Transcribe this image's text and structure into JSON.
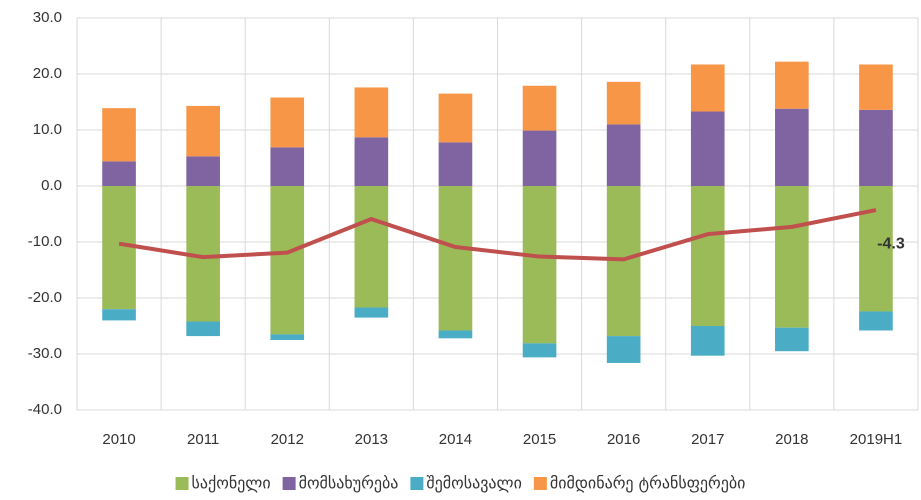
{
  "chart_data": {
    "type": "bar",
    "categories": [
      "2010",
      "2011",
      "2012",
      "2013",
      "2014",
      "2015",
      "2016",
      "2017",
      "2018",
      "2019H1"
    ],
    "series": [
      {
        "name": "საქონელი",
        "color": "#9bbb59",
        "values": [
          -22.0,
          -24.2,
          -26.5,
          -21.7,
          -25.8,
          -28.1,
          -26.8,
          -25.0,
          -25.3,
          -22.4
        ]
      },
      {
        "name": "მომსახურება",
        "color": "#8064a2",
        "values": [
          4.4,
          5.3,
          6.9,
          8.7,
          7.8,
          9.9,
          11.0,
          13.3,
          13.8,
          13.6
        ]
      },
      {
        "name": "შემოსავალი",
        "color": "#4bacc6",
        "values": [
          -2.0,
          -2.6,
          -1.0,
          -1.8,
          -1.4,
          -2.5,
          -4.8,
          -5.3,
          -4.2,
          -3.4
        ]
      },
      {
        "name": "მიმდინარე ტრანსფერები",
        "color": "#f79646",
        "values": [
          9.5,
          9.0,
          8.9,
          8.9,
          8.7,
          8.0,
          7.6,
          8.4,
          8.4,
          8.1
        ]
      }
    ],
    "line": {
      "color": "#c0504d",
      "values": [
        -10.3,
        -12.7,
        -11.9,
        -5.9,
        -10.9,
        -12.6,
        -13.1,
        -8.6,
        -7.3,
        -4.3
      ],
      "value_labels": [
        null,
        null,
        null,
        null,
        null,
        null,
        null,
        null,
        null,
        "-4.3"
      ]
    },
    "ylim": [
      -40,
      30
    ],
    "yticks": [
      {
        "value": -40,
        "label": "-40.0"
      },
      {
        "value": -30,
        "label": "-30.0"
      },
      {
        "value": -20,
        "label": "-20.0"
      },
      {
        "value": -10,
        "label": "-10.0"
      },
      {
        "value": 0,
        "label": "0.0"
      },
      {
        "value": 10,
        "label": "10.0"
      },
      {
        "value": 20,
        "label": "20.0"
      },
      {
        "value": 30,
        "label": "30.0"
      }
    ],
    "grid": true
  }
}
